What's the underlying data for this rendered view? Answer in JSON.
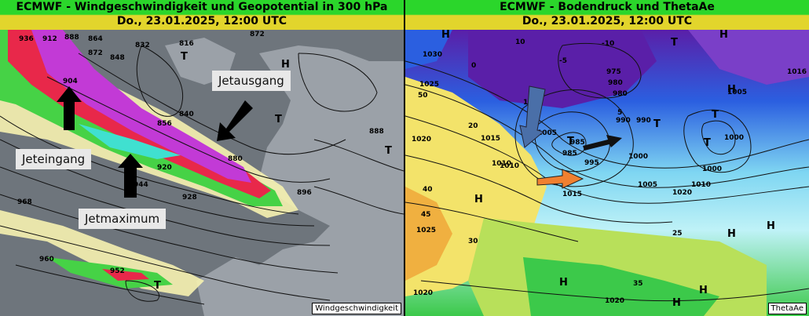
{
  "left_panel": {
    "title": "ECMWF - Windgeschwindigkeit und Geopotential in 300 hPa",
    "date": "Do., 23.01.2025, 12:00 UTC",
    "badge": "Windgeschwindigkeit",
    "annotations": {
      "jet_exit": "Jetausgang",
      "jet_entrance": "Jeteingang",
      "jet_max": "Jetmaximum"
    },
    "isohypse_labels": [
      "936",
      "912",
      "888",
      "864",
      "872",
      "848",
      "840",
      "832",
      "816",
      "904",
      "944",
      "952",
      "960",
      "968",
      "856",
      "880",
      "920",
      "928",
      "896",
      "888",
      "872"
    ],
    "pressure_symbols": [
      "H",
      "T",
      "T",
      "T",
      "T"
    ],
    "colors": {
      "ocean": "#6a7178",
      "land": "#9aa0a6",
      "wind_yellow": "#f6f2b0",
      "wind_green": "#46d246",
      "wind_red": "#e8284a",
      "wind_magenta": "#c23ad6",
      "wind_violet": "#8a2be2",
      "wind_cyan": "#40e0d0"
    }
  },
  "right_panel": {
    "title": "ECMWF - Bodendruck und ThetaAe",
    "date": "Do., 23.01.2025, 12:00 UTC",
    "badge": "ThetaAe",
    "isobar_labels": [
      "1030",
      "1025",
      "1020",
      "1015",
      "1010",
      "1005",
      "1000",
      "995",
      "990",
      "985",
      "980",
      "975",
      "1015",
      "1010",
      "1005",
      "1000",
      "990",
      "1020",
      "1025",
      "1020",
      "1010",
      "1000",
      "1005",
      "1016",
      "1020",
      "980",
      "985"
    ],
    "theta_labels": [
      "10",
      "15",
      "20",
      "25",
      "30",
      "35",
      "40",
      "45",
      "50",
      "-10",
      "-5",
      "0",
      "5"
    ],
    "pressure_symbols": [
      "H",
      "H",
      "H",
      "H",
      "H",
      "H",
      "H",
      "T",
      "T",
      "T",
      "T",
      "T",
      "H",
      "H"
    ],
    "colors": {
      "violet": "#5a1fa8",
      "blue": "#2b5fe0",
      "lightblue": "#7fd6f2",
      "cyan": "#bff2f7",
      "green": "#3cc94a",
      "yellowgreen": "#b8e05a",
      "yellow": "#f3e36a",
      "orange": "#f0b040"
    }
  }
}
